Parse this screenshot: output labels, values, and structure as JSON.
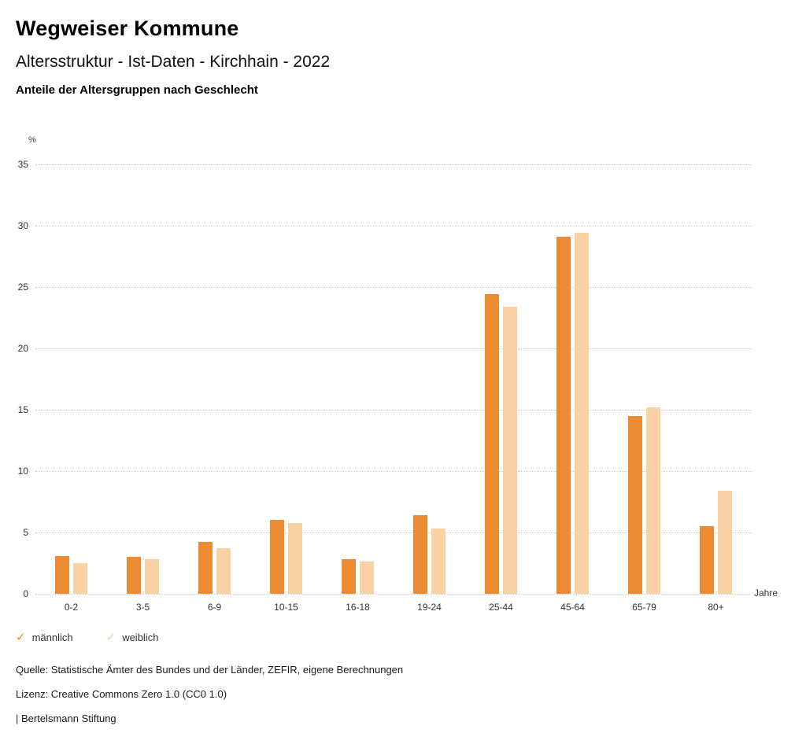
{
  "header": {
    "title": "Wegweiser Kommune",
    "subtitle": "Altersstruktur - Ist-Daten - Kirchhain - 2022",
    "chart_heading": "Anteile der Altersgruppen nach Geschlecht"
  },
  "chart_data": {
    "type": "bar",
    "title": "Anteile der Altersgruppen nach Geschlecht",
    "categories": [
      "0-2",
      "3-5",
      "6-9",
      "10-15",
      "16-18",
      "19-24",
      "25-44",
      "45-64",
      "65-79",
      "80+"
    ],
    "series": [
      {
        "name": "männlich",
        "color": "#ED8B32",
        "values": [
          3.1,
          3.0,
          4.2,
          6.0,
          2.8,
          6.4,
          24.4,
          29.1,
          14.5,
          5.5
        ]
      },
      {
        "name": "weiblich",
        "color": "#F8D1A4",
        "values": [
          2.5,
          2.8,
          3.7,
          5.8,
          2.6,
          5.3,
          23.4,
          29.4,
          15.2,
          8.4
        ]
      }
    ],
    "ylabel": "%",
    "xlabel": "Jahre",
    "ylim": [
      0,
      35
    ],
    "yticks": [
      0,
      5,
      10,
      15,
      20,
      25,
      30,
      35
    ],
    "grid": true,
    "legend_position": "bottom"
  },
  "legend": {
    "items": [
      {
        "label": "männlich",
        "color": "#ED8B32",
        "checkmark": "✓"
      },
      {
        "label": "weiblich",
        "color": "#F8D1A4",
        "checkmark": "✓"
      }
    ]
  },
  "footer": {
    "source": "Quelle: Statistische Ämter des Bundes und der Länder, ZEFIR, eigene Berechnungen",
    "license": "Lizenz: Creative Commons Zero 1.0 (CC0 1.0)",
    "attribution": "| Bertelsmann Stiftung"
  }
}
